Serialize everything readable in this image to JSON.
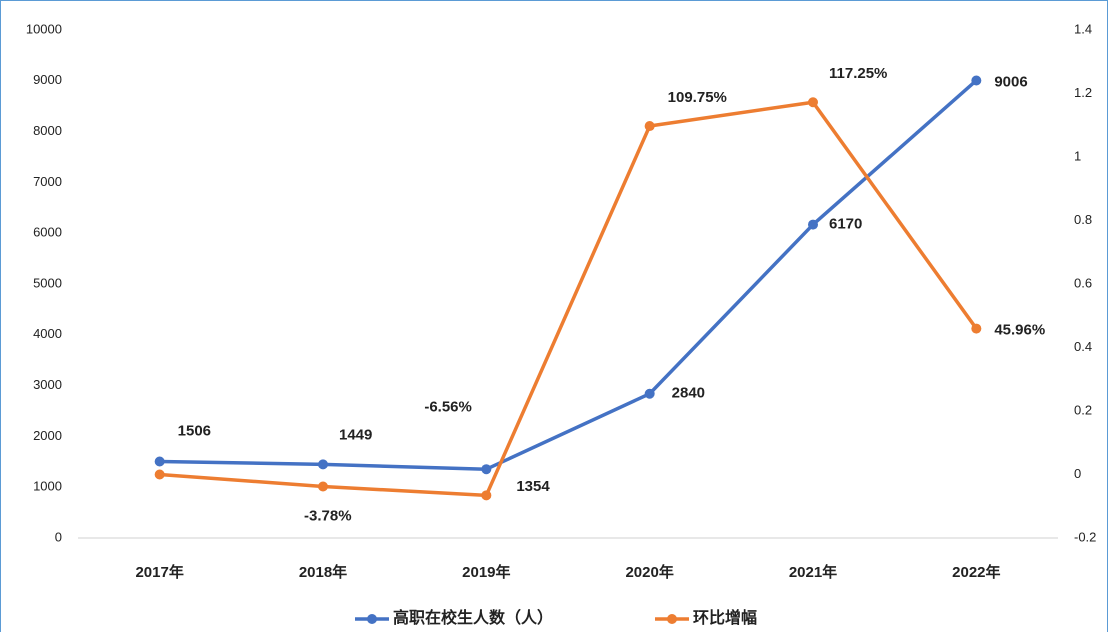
{
  "chart_data": {
    "type": "line",
    "categories": [
      "2017年",
      "2018年",
      "2019年",
      "2020年",
      "2021年",
      "2022年"
    ],
    "series": [
      {
        "name": "高职在校生人数（人）",
        "color": "#4472c4",
        "axis": "y",
        "values": [
          1506,
          1449,
          1354,
          2840,
          6170,
          9006
        ]
      },
      {
        "name": "环比增幅",
        "color": "#ed7d31",
        "axis": "y2",
        "values": [
          0,
          -0.0378,
          -0.0656,
          1.0975,
          1.1725,
          0.4596
        ],
        "value_labels": [
          null,
          "-3.78%",
          "-6.56%",
          "109.75%",
          "117.25%",
          "45.96%"
        ]
      }
    ],
    "ylim": [
      0,
      10000
    ],
    "yticks": [
      0,
      1000,
      2000,
      3000,
      4000,
      5000,
      6000,
      7000,
      8000,
      9000,
      10000
    ],
    "y2lim": [
      -0.2,
      1.4
    ],
    "y2ticks": [
      -0.2,
      0,
      0.2,
      0.4,
      0.6,
      0.8,
      1,
      1.2,
      1.4
    ],
    "legend": "bottom"
  }
}
